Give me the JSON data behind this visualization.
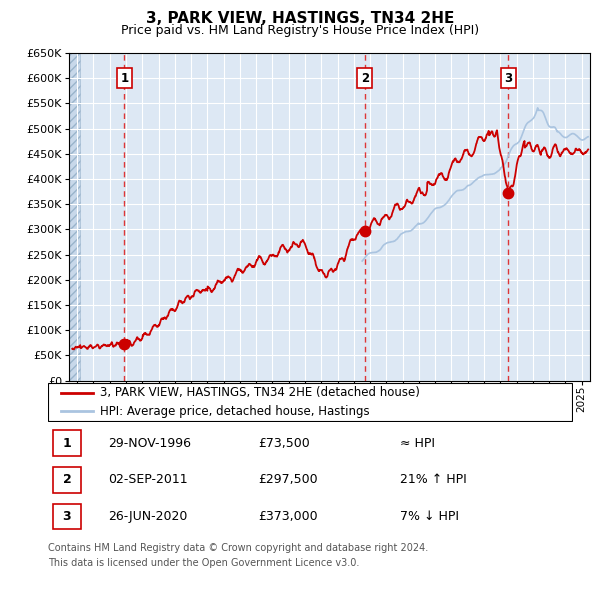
{
  "title": "3, PARK VIEW, HASTINGS, TN34 2HE",
  "subtitle": "Price paid vs. HM Land Registry's House Price Index (HPI)",
  "ylim": [
    0,
    650000
  ],
  "yticks": [
    0,
    50000,
    100000,
    150000,
    200000,
    250000,
    300000,
    350000,
    400000,
    450000,
    500000,
    550000,
    600000,
    650000
  ],
  "xlim_start": 1993.5,
  "xlim_end": 2025.5,
  "sale_dates": [
    1996.91,
    2011.67,
    2020.49
  ],
  "sale_prices": [
    73500,
    297500,
    373000
  ],
  "sale_labels": [
    "1",
    "2",
    "3"
  ],
  "hpi_color": "#aac4e0",
  "price_color": "#cc0000",
  "dashed_line_color": "#dd2222",
  "bg_plot": "#dde8f4",
  "bg_hatch_face": "#c8d8ea",
  "grid_color": "#ffffff",
  "label_box_color": "#cc0000",
  "legend_line1": "3, PARK VIEW, HASTINGS, TN34 2HE (detached house)",
  "legend_line2": "HPI: Average price, detached house, Hastings",
  "table_rows": [
    {
      "num": "1",
      "date": "29-NOV-1996",
      "price": "£73,500",
      "rel": "≈ HPI"
    },
    {
      "num": "2",
      "date": "02-SEP-2011",
      "price": "£297,500",
      "rel": "21% ↑ HPI"
    },
    {
      "num": "3",
      "date": "26-JUN-2020",
      "price": "£373,000",
      "rel": "7% ↓ HPI"
    }
  ],
  "footnote1": "Contains HM Land Registry data © Crown copyright and database right 2024.",
  "footnote2": "This data is licensed under the Open Government Licence v3.0."
}
